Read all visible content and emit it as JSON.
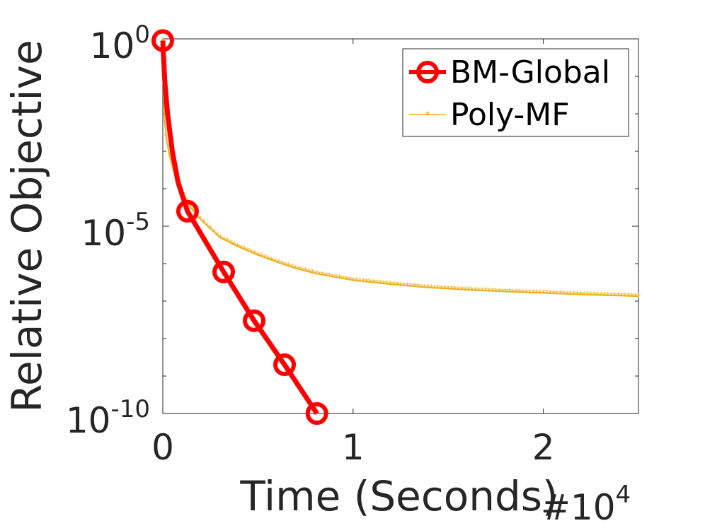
{
  "chart_data": {
    "type": "line",
    "xlabel": "Time (Seconds)",
    "x_multiplier": {
      "base": "#10",
      "exponent": "4"
    },
    "ylabel": "Relative Objective",
    "yscale": "log",
    "xlim": [
      0,
      25000
    ],
    "ylim": [
      1e-10,
      1
    ],
    "x_ticks": [
      {
        "value": 0,
        "label": "0"
      },
      {
        "value": 10000,
        "label": "1"
      },
      {
        "value": 20000,
        "label": "2"
      }
    ],
    "y_ticks": [
      {
        "value": 1,
        "base": "10",
        "exponent": "0"
      },
      {
        "value": 1e-05,
        "base": "10",
        "exponent": "-5"
      },
      {
        "value": 1e-10,
        "base": "10",
        "exponent": "-10"
      }
    ],
    "legend_position": "top-right",
    "series": [
      {
        "name": "BM-Global",
        "color": "#ff0000",
        "marker": "circle",
        "x": [
          0,
          100,
          250,
          500,
          800,
          1300,
          3200,
          4800,
          6400,
          8100
        ],
        "y": [
          0.9,
          0.08,
          0.01,
          0.001,
          0.00015,
          2.5e-05,
          6e-07,
          3e-08,
          2e-09,
          1e-10
        ]
      },
      {
        "name": "Poly-MF",
        "color": "#edb120",
        "marker": "asterisk",
        "x": [
          0,
          50,
          100,
          200,
          400,
          700,
          1000,
          1500,
          2000,
          3000,
          4000,
          5000,
          6000,
          7000,
          8000,
          10000,
          12000,
          14000,
          16000,
          18000,
          20000,
          22000,
          25000
        ],
        "y": [
          0.9,
          0.025,
          0.006,
          0.002,
          0.0006,
          0.00018,
          8e-05,
          3e-05,
          1.5e-05,
          5e-06,
          2.8e-06,
          1.7e-06,
          1.1e-06,
          7.5e-07,
          5.5e-07,
          3.6e-07,
          2.8e-07,
          2.3e-07,
          2e-07,
          1.8e-07,
          1.65e-07,
          1.5e-07,
          1.35e-07
        ]
      }
    ]
  }
}
